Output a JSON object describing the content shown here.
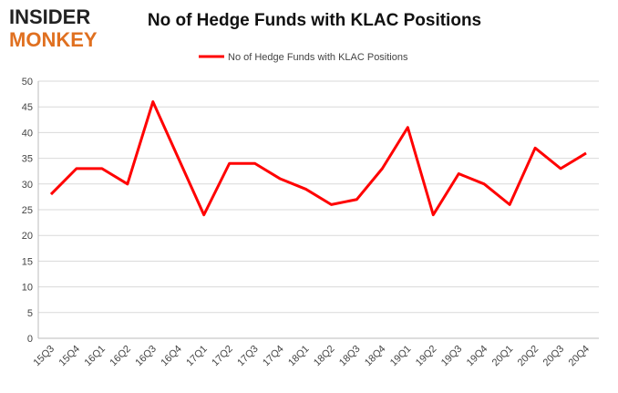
{
  "logo": {
    "line1": "INSIDER",
    "line2": "MONKEY"
  },
  "chart_data": {
    "type": "line",
    "title": "No of Hedge Funds with KLAC Positions",
    "categories": [
      "15Q3",
      "15Q4",
      "16Q1",
      "16Q2",
      "16Q3",
      "16Q4",
      "17Q1",
      "17Q2",
      "17Q3",
      "17Q4",
      "18Q1",
      "18Q2",
      "18Q3",
      "18Q4",
      "19Q1",
      "19Q2",
      "19Q3",
      "19Q4",
      "20Q1",
      "20Q2",
      "20Q3",
      "20Q4"
    ],
    "series": [
      {
        "name": "No of Hedge Funds with KLAC Positions",
        "color": "#ff0000",
        "values": [
          28,
          33,
          33,
          30,
          46,
          35,
          24,
          34,
          34,
          31,
          29,
          26,
          27,
          33,
          41,
          24,
          32,
          30,
          26,
          37,
          33,
          36
        ]
      }
    ],
    "ylim": [
      0,
      50
    ],
    "yticks": [
      0,
      5,
      10,
      15,
      20,
      25,
      30,
      35,
      40,
      45,
      50
    ],
    "grid": true,
    "legend": "top"
  }
}
